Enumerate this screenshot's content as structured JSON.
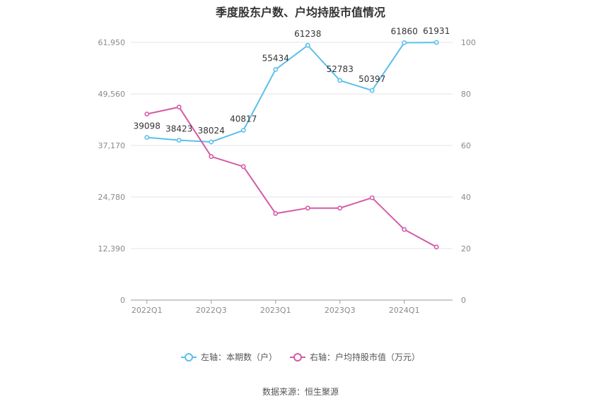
{
  "chart_data": {
    "type": "line",
    "title": "季度股东户数、户均持股市值情况",
    "categories": [
      "2022Q1",
      "2022Q2",
      "2022Q3",
      "2022Q4",
      "2023Q1",
      "2023Q2",
      "2023Q3",
      "2023Q4",
      "2024Q1",
      "2024Q2"
    ],
    "x_tick_labels": [
      "2022Q1",
      "",
      "2022Q3",
      "",
      "2023Q1",
      "",
      "2023Q3",
      "",
      "2024Q1",
      ""
    ],
    "left_axis": {
      "ylim": [
        0,
        61950
      ],
      "ticks": [
        "0",
        "12,390",
        "24,780",
        "37,170",
        "49,560",
        "61,950"
      ]
    },
    "right_axis": {
      "ylim": [
        0,
        100
      ],
      "ticks": [
        "0",
        "20",
        "40",
        "60",
        "80",
        "100"
      ]
    },
    "series": [
      {
        "name": "左轴：本期数（户）",
        "axis": "left",
        "color": "#5bc0eb",
        "values": [
          39098,
          38423,
          38024,
          40817,
          55434,
          61238,
          52783,
          50397,
          61860,
          61931
        ],
        "labels": [
          "39098",
          "38423",
          "38024",
          "40817",
          "55434",
          "61238",
          "52783",
          "50397",
          "61860",
          "61931"
        ]
      },
      {
        "name": "右轴：户均持股市值（万元）",
        "axis": "right",
        "color": "#d45aa8",
        "values": [
          72.2,
          74.9,
          55.7,
          51.8,
          33.6,
          35.7,
          35.7,
          39.7,
          27.4,
          20.6
        ]
      }
    ],
    "grid": true,
    "legend_position": "bottom"
  },
  "source": "数据来源：恒生聚源"
}
